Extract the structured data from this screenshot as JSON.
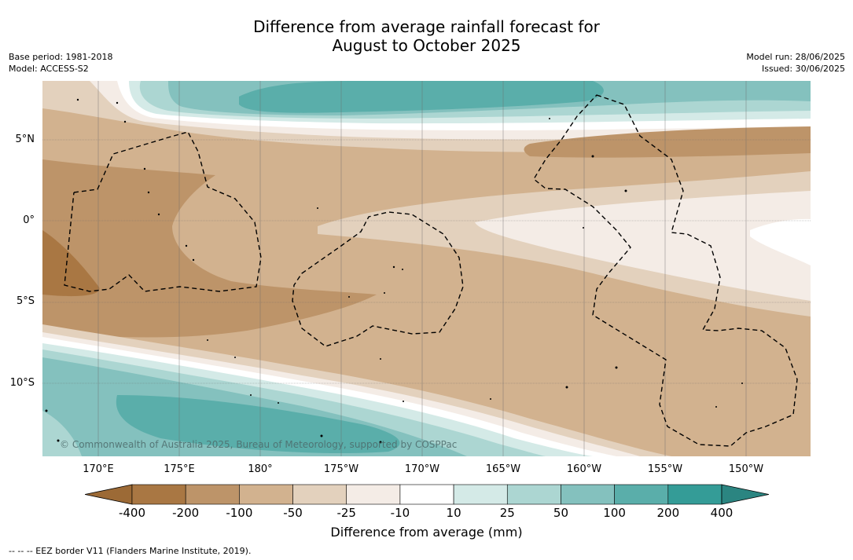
{
  "title_line1": "Difference from average rainfall forecast for",
  "title_line2": "August to October 2025",
  "meta_left": {
    "base_period": "Base period: 1981-2018",
    "model": "Model: ACCESS-S2"
  },
  "meta_right": {
    "model_run": "Model run: 28/06/2025",
    "issued": "Issued: 30/06/2025"
  },
  "map": {
    "copyright": "© Commonwealth of Australia 2025, Bureau of Meteorology, supported by COSPPac",
    "lon_labels": [
      "170°E",
      "175°E",
      "180°",
      "175°W",
      "170°W",
      "165°W",
      "160°W",
      "155°W",
      "150°W"
    ],
    "lat_labels": [
      "5°N",
      "0°",
      "5°S",
      "10°S"
    ]
  },
  "colorbar": {
    "title": "Difference from average (mm)",
    "ticks": [
      "-400",
      "-200",
      "-100",
      "-50",
      "-25",
      "-10",
      "10",
      "25",
      "50",
      "100",
      "200",
      "400"
    ],
    "colors": {
      "below_min": "#9c6a36",
      "bins": [
        "#a97743",
        "#bd9469",
        "#d2b28f",
        "#e3d1bd",
        "#f4ece6",
        "#ffffff",
        "#d4eae7",
        "#acd6d2",
        "#84c1be",
        "#5aaeaa",
        "#349c97"
      ],
      "above_max": "#2b8581"
    }
  },
  "footer": "--  --  -- EEZ border V11 (Flanders Marine Institute, 2019)."
}
